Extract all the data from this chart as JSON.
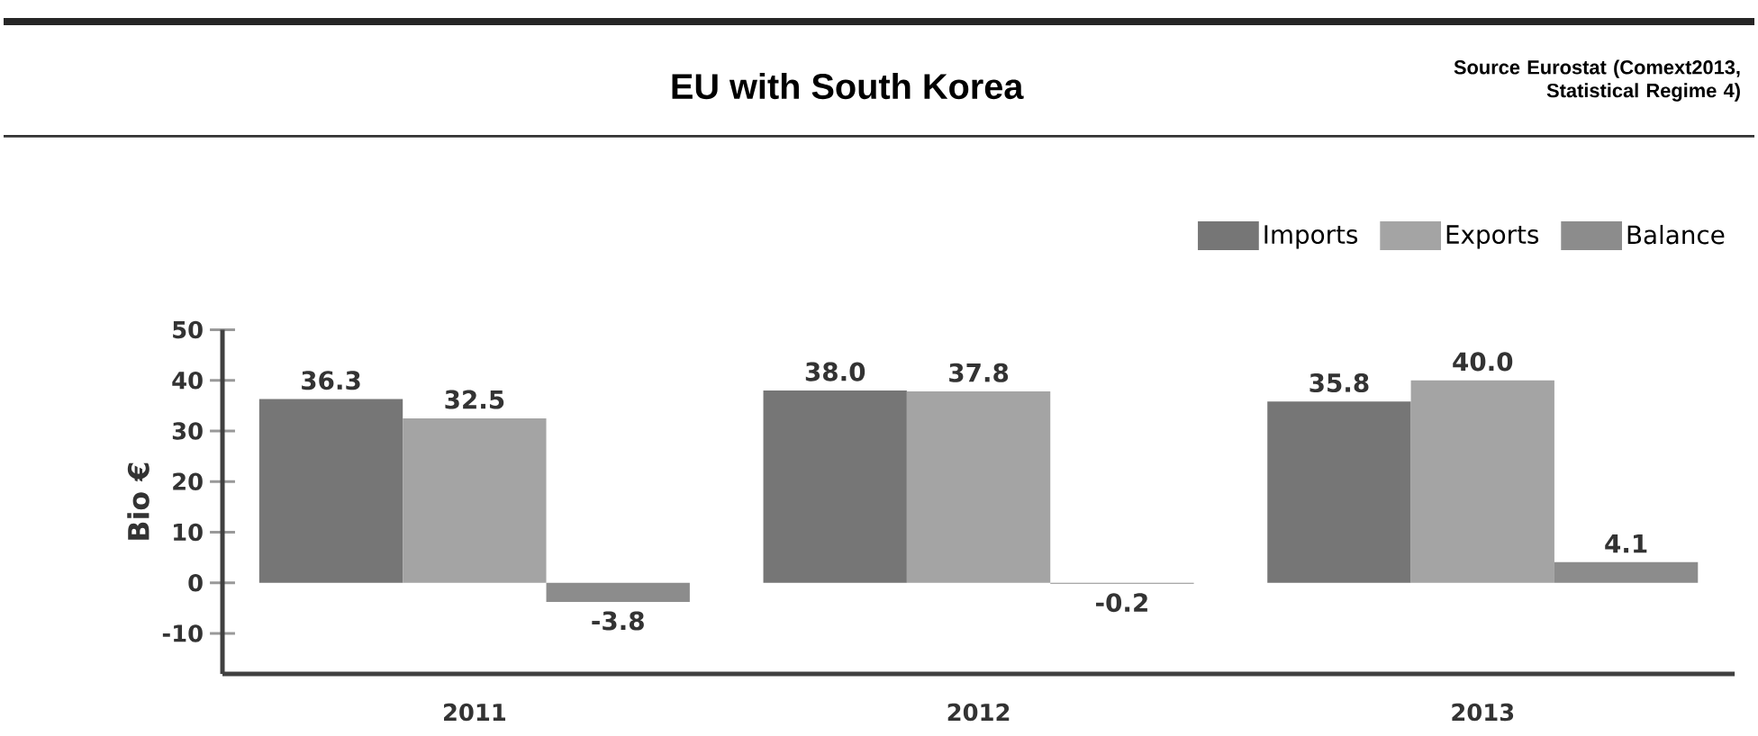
{
  "chart_data": {
    "type": "bar",
    "title": "EU with South Korea",
    "annotations": [
      "Source Eurostat (Comext2013, Statistical Regime 4)"
    ],
    "ylabel": "Bio  €",
    "categories": [
      "2011",
      "2012",
      "2013"
    ],
    "series": [
      {
        "name": "Imports",
        "color": "#767676",
        "values": [
          36.3,
          38.0,
          35.8
        ],
        "value_labels": [
          "36.3",
          "38.0",
          "35.8"
        ]
      },
      {
        "name": "Exports",
        "color": "#a4a4a4",
        "values": [
          32.5,
          37.8,
          40.0
        ],
        "value_labels": [
          "32.5",
          "37.8",
          "40.0"
        ]
      },
      {
        "name": "Balance",
        "color": "#8c8c8c",
        "values": [
          -3.8,
          -0.2,
          4.1
        ],
        "value_labels": [
          "-3.8",
          "-0.2",
          "4.1"
        ]
      }
    ],
    "ylim": [
      -18,
      50
    ],
    "yticks": [
      -10,
      0,
      10,
      20,
      30,
      40,
      50
    ],
    "legend": "top right"
  }
}
